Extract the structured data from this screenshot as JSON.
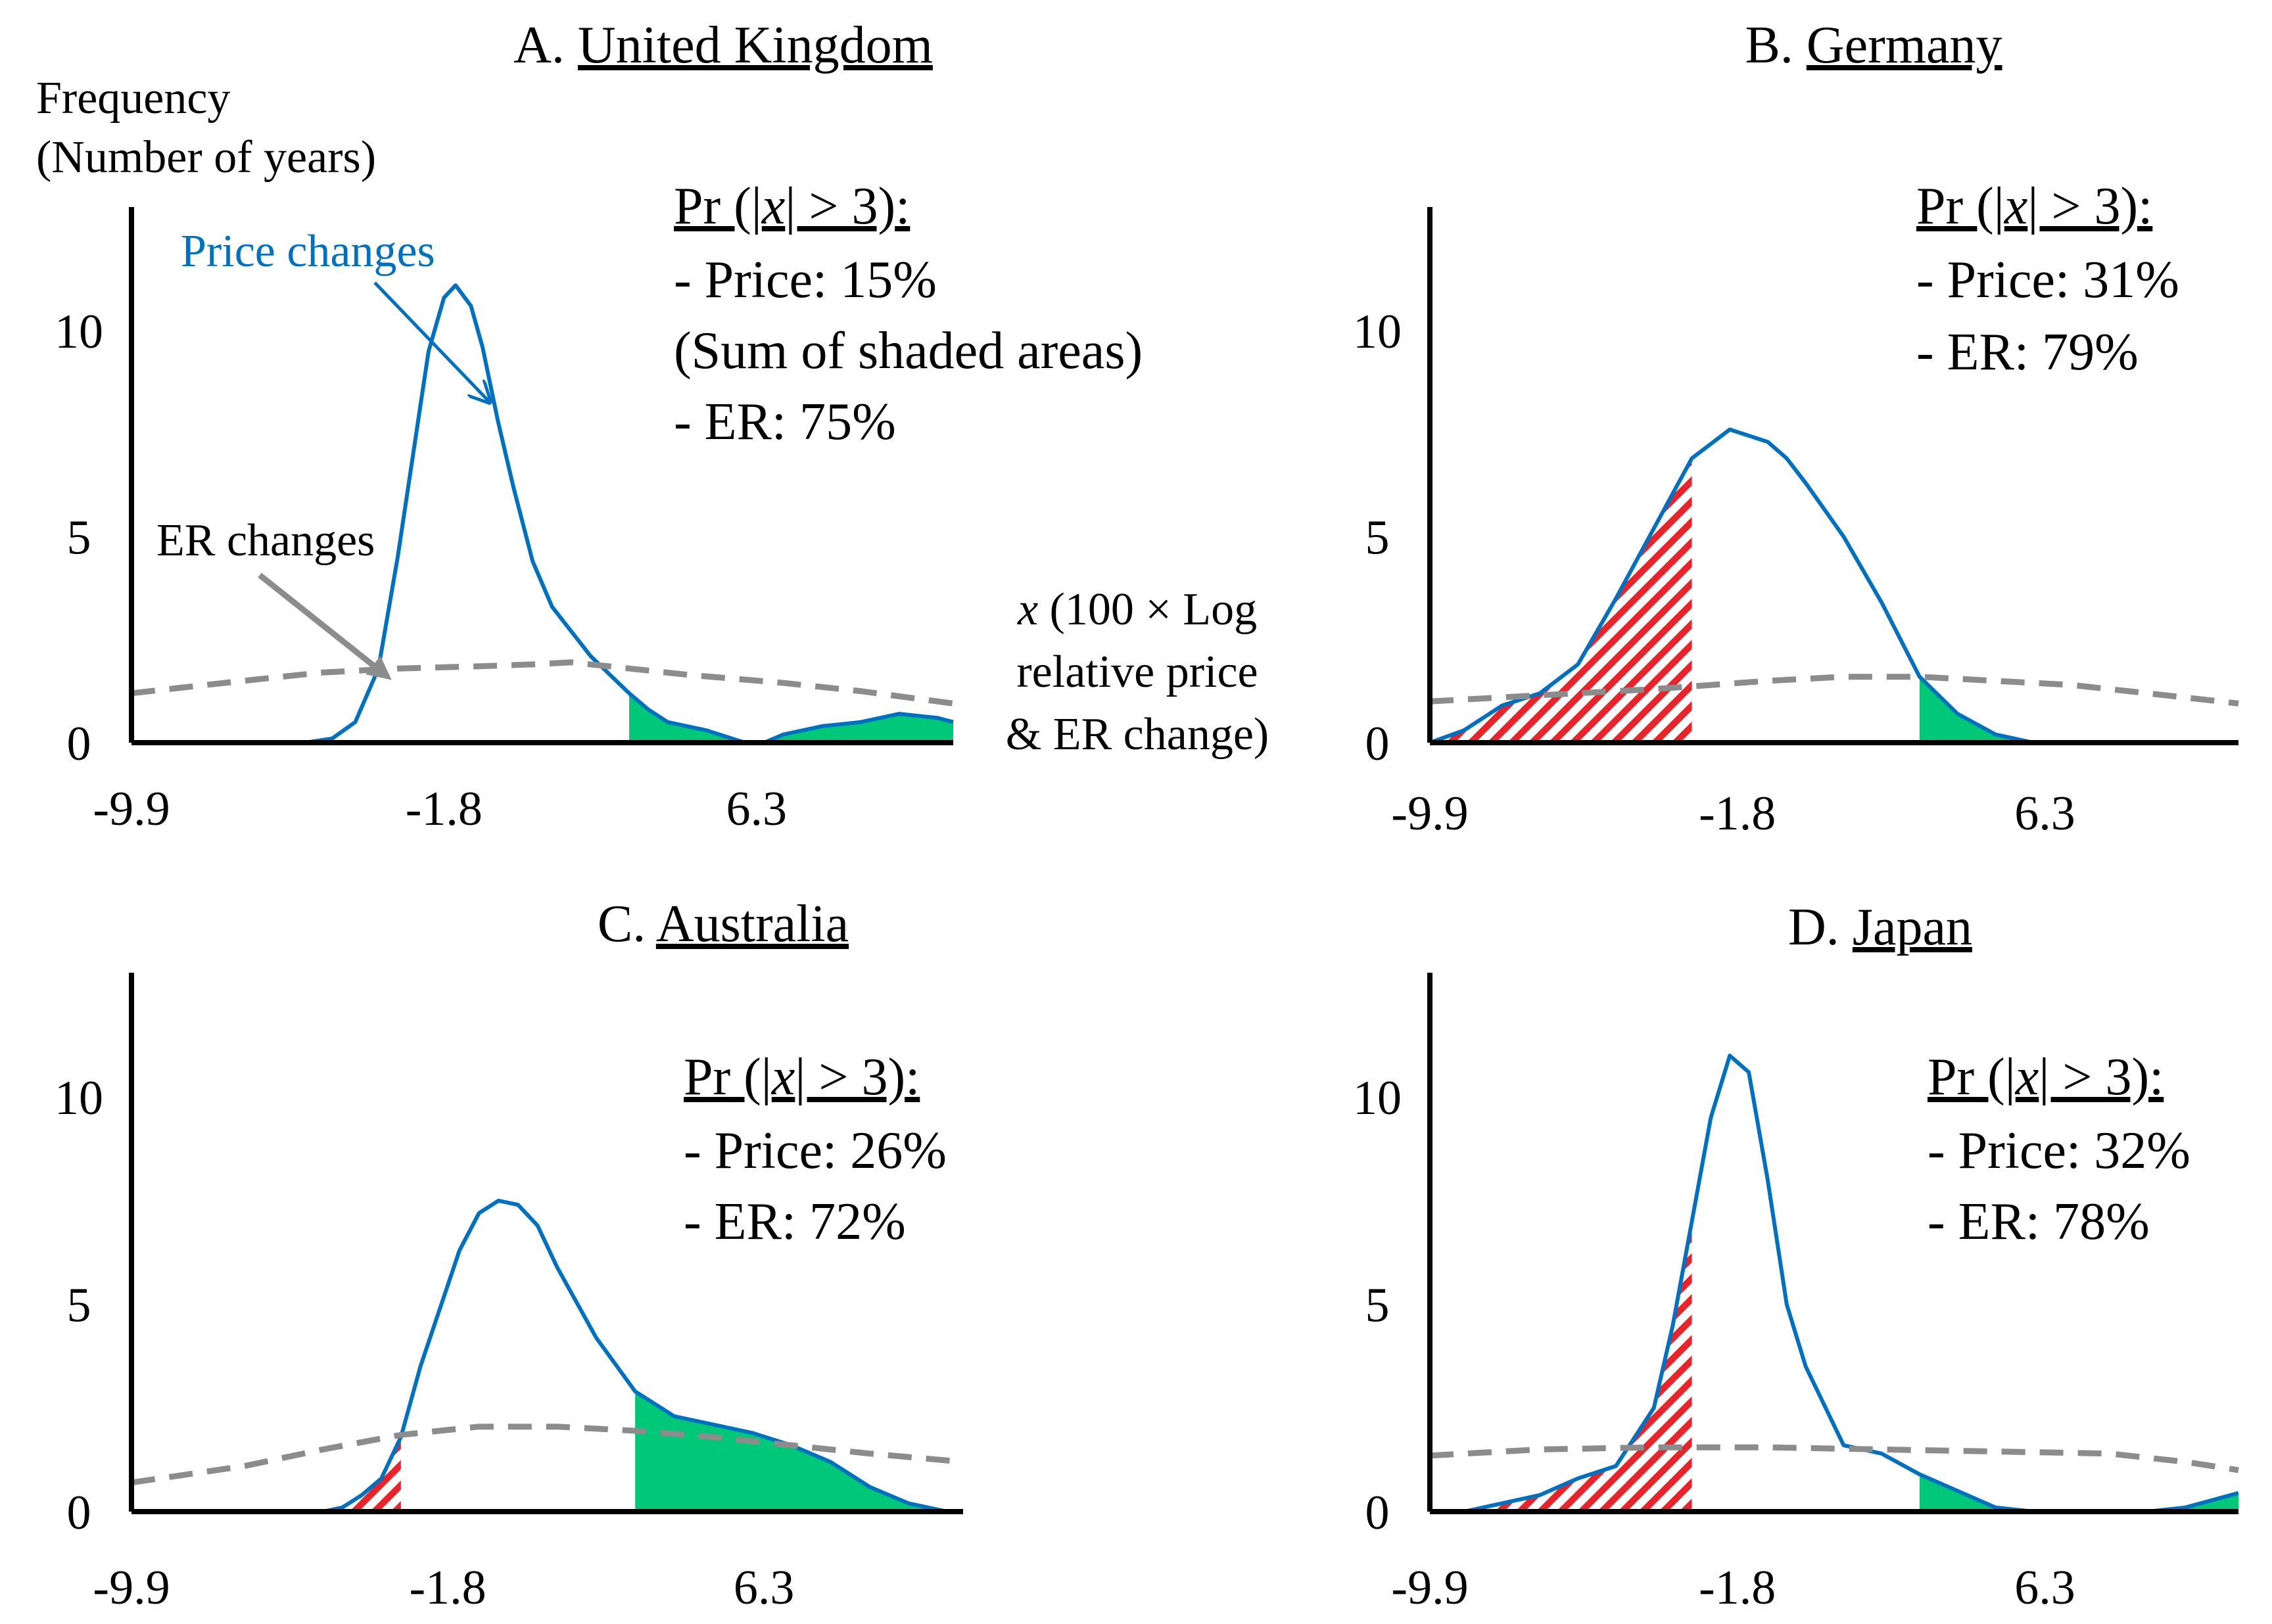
{
  "figure": {
    "annotations": {
      "price_changes": "Price changes",
      "er_changes": "ER changes",
      "ylabel_line1": "Frequency",
      "ylabel_line2": "(Number of years)",
      "xlabel_var": "x",
      "xlabel_line1_rest": " (100 × Log",
      "xlabel_line2": "relative price",
      "xlabel_line3": "& ER change)",
      "sum_shaded": "(Sum of shaded areas)"
    },
    "colors": {
      "price": "#0070C0",
      "er": "#8C8C8C",
      "shade_right": "#00C878",
      "hatch": "#E8232A"
    }
  },
  "chart_data": [
    {
      "type": "line",
      "panel": "A",
      "title_prefix": "A. ",
      "title_country": "United Kingdom",
      "stat_head": "Pr (|x| > 3):",
      "stat_price": "- Price: 15%",
      "stat_er": "- ER: 75%",
      "x_ticks": [
        "-9.9",
        "-1.8",
        "6.3"
      ],
      "y_ticks": [
        "0",
        "5",
        "10"
      ],
      "xlim": [
        -9.9,
        11.4
      ],
      "ylim": [
        0,
        13
      ],
      "series": [
        {
          "name": "Price changes",
          "x": [
            -9.9,
            -5.4,
            -4.7,
            -4.1,
            -3.5,
            -3.0,
            -2.6,
            -2.2,
            -1.8,
            -1.5,
            -1.1,
            -0.8,
            -0.4,
            0.0,
            0.5,
            1.0,
            1.5,
            2.0,
            3.0,
            3.5,
            4.0,
            5.0,
            6.0,
            6.5,
            7.0,
            8.0,
            9.0,
            10.0,
            11.0,
            11.4
          ],
          "y": [
            0,
            0,
            0.1,
            0.5,
            1.8,
            4.5,
            7.0,
            9.5,
            10.8,
            11.1,
            10.6,
            9.6,
            7.8,
            6.2,
            4.4,
            3.3,
            2.7,
            2.1,
            1.2,
            0.8,
            0.5,
            0.3,
            0.0,
            0.0,
            0.2,
            0.4,
            0.5,
            0.7,
            0.6,
            0.5
          ]
        },
        {
          "name": "ER changes",
          "x": [
            -9.9,
            -7.5,
            -5.0,
            -3.0,
            -1.0,
            0.5,
            1.5,
            2.5,
            4.5,
            7.0,
            9.0,
            11.4
          ],
          "y": [
            1.2,
            1.45,
            1.7,
            1.8,
            1.85,
            1.9,
            1.95,
            1.85,
            1.65,
            1.45,
            1.25,
            0.95
          ]
        }
      ],
      "shade_right_from": 3.0
    },
    {
      "type": "line",
      "panel": "B",
      "title_prefix": "B. ",
      "title_country": "Germany",
      "stat_head": "Pr (|x| > 3):",
      "stat_price": "- Price: 31%",
      "stat_er": "- ER: 79%",
      "x_ticks": [
        "-9.9",
        "-1.8",
        "6.3"
      ],
      "y_ticks": [
        "0",
        "5",
        "10"
      ],
      "xlim": [
        -9.9,
        11.4
      ],
      "ylim": [
        0,
        13
      ],
      "series": [
        {
          "name": "Price changes",
          "x": [
            -9.9,
            -9.0,
            -8.0,
            -7.0,
            -6.0,
            -5.0,
            -4.0,
            -3.0,
            -2.0,
            -1.0,
            -0.5,
            0.0,
            1.0,
            2.0,
            3.0,
            4.0,
            5.0,
            6.0,
            7.0,
            8.0,
            9.0,
            10.0,
            11.4
          ],
          "y": [
            0,
            0.3,
            0.9,
            1.2,
            1.9,
            3.5,
            5.2,
            6.9,
            7.6,
            7.3,
            6.9,
            6.3,
            5.0,
            3.4,
            1.6,
            0.7,
            0.2,
            0.0,
            0.0,
            0.0,
            0.0,
            0.0,
            0.0
          ]
        },
        {
          "name": "ER changes",
          "x": [
            -9.9,
            -7.0,
            -4.0,
            -1.0,
            1.0,
            3.0,
            5.0,
            7.0,
            9.0,
            11.4
          ],
          "y": [
            1.0,
            1.15,
            1.3,
            1.5,
            1.6,
            1.6,
            1.5,
            1.4,
            1.2,
            0.95
          ]
        }
      ],
      "shade_left_to": -3.0,
      "shade_right_from": 3.0
    },
    {
      "type": "line",
      "panel": "C",
      "title_prefix": "C. ",
      "title_country": "Australia",
      "stat_head": "Pr (|x| > 3):",
      "stat_price": "- Price: 26%",
      "stat_er": "- ER: 72%",
      "x_ticks": [
        "-9.9",
        "-1.8",
        "6.3"
      ],
      "y_ticks": [
        "0",
        "5",
        "10"
      ],
      "xlim": [
        -9.9,
        11.4
      ],
      "ylim": [
        0,
        13
      ],
      "series": [
        {
          "name": "Price changes",
          "x": [
            -9.9,
            -5.0,
            -4.5,
            -4.0,
            -3.5,
            -3.0,
            -2.5,
            -2.0,
            -1.5,
            -1.0,
            -0.5,
            0.0,
            0.5,
            1.0,
            2.0,
            3.0,
            4.0,
            5.0,
            6.0,
            7.0,
            8.0,
            9.0,
            10.0,
            11.0
          ],
          "y": [
            0,
            0,
            0.1,
            0.4,
            0.8,
            1.8,
            3.5,
            4.9,
            6.3,
            7.2,
            7.5,
            7.4,
            6.9,
            5.9,
            4.2,
            2.9,
            2.3,
            2.1,
            1.9,
            1.6,
            1.2,
            0.6,
            0.2,
            0.0
          ]
        },
        {
          "name": "ER changes",
          "x": [
            -9.9,
            -7.0,
            -5.0,
            -3.0,
            -1.0,
            1.0,
            3.0,
            5.0,
            7.0,
            9.0,
            11.4
          ],
          "y": [
            0.7,
            1.1,
            1.5,
            1.85,
            2.05,
            2.05,
            1.95,
            1.8,
            1.6,
            1.4,
            1.2
          ]
        }
      ],
      "shade_left_to": -3.0,
      "shade_right_from": 3.0
    },
    {
      "type": "line",
      "panel": "D",
      "title_prefix": "D. ",
      "title_country": "Japan",
      "stat_head": "Pr (|x| > 3):",
      "stat_price": "- Price: 32%",
      "stat_er": "- ER: 78%",
      "x_ticks": [
        "-9.9",
        "-1.8",
        "6.3"
      ],
      "y_ticks": [
        "0",
        "5",
        "10"
      ],
      "xlim": [
        -9.9,
        11.4
      ],
      "ylim": [
        0,
        13
      ],
      "series": [
        {
          "name": "Price changes",
          "x": [
            -9.9,
            -9.0,
            -8.0,
            -7.0,
            -6.0,
            -5.0,
            -4.0,
            -3.5,
            -3.0,
            -2.5,
            -2.0,
            -1.5,
            -1.0,
            -0.5,
            0.0,
            1.0,
            2.0,
            3.0,
            4.0,
            5.0,
            6.0,
            7.0,
            8.0,
            9.0,
            10.0,
            11.4
          ],
          "y": [
            0,
            0,
            0.2,
            0.4,
            0.8,
            1.1,
            2.5,
            4.5,
            7.0,
            9.5,
            11.0,
            10.6,
            8.0,
            5.0,
            3.5,
            1.6,
            1.4,
            0.9,
            0.5,
            0.1,
            0.0,
            0.0,
            0.0,
            0.0,
            0.1,
            0.45
          ]
        },
        {
          "name": "ER changes",
          "x": [
            -9.9,
            -7.0,
            -4.0,
            -1.0,
            2.0,
            5.0,
            8.0,
            10.0,
            11.4
          ],
          "y": [
            1.35,
            1.5,
            1.55,
            1.55,
            1.5,
            1.45,
            1.4,
            1.2,
            1.0
          ]
        }
      ],
      "shade_left_to": -3.0,
      "shade_right_from": 3.0
    }
  ]
}
